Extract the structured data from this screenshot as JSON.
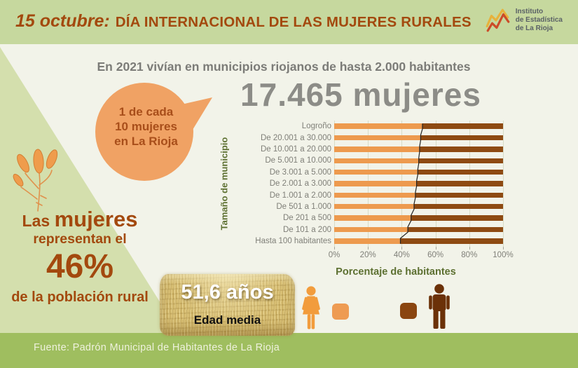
{
  "header": {
    "date_prefix": "15 octubre:",
    "title": "DÍA INTERNACIONAL DE LAS MUJERES RURALES",
    "logo": {
      "line1": "Instituto",
      "line2": "de Estadística",
      "line3": "de La Rioja"
    }
  },
  "subtitle": "En 2021 vivían en municipios riojanos de hasta 2.000 habitantes",
  "big_number": "17.465 mujeres",
  "bubble": {
    "line1": "1 de cada",
    "line2": "10 mujeres",
    "line3": "en La Rioja"
  },
  "left_panel": {
    "line1_small": "Las",
    "line1_big": "mujeres",
    "line2": "representan el",
    "percent": "46%",
    "line3": "de la población rural"
  },
  "hay": {
    "value": "51,6 años",
    "label": "Edad media"
  },
  "footer": {
    "source": "Fuente: Padrón Municipal de Habitantes de La Rioja"
  },
  "colors": {
    "header_bg": "#c6d89e",
    "content_bg": "#f2f3e9",
    "diagonal_green": "#d4dfad",
    "footer_bg": "#9fbe5f",
    "title_brown": "#a3490e",
    "bubble_orange": "#f0a264",
    "women_orange": "#ed9a4e",
    "men_brown": "#8e4a12",
    "axis_green": "#5d7031",
    "text_gray": "#8c8c87"
  },
  "chart_data": {
    "type": "bar",
    "orientation": "horizontal",
    "stacked": true,
    "ylabel_axis": "Tamaño de municipio",
    "xlabel": "Porcentaje de habitantes",
    "categories": [
      "Logroño",
      "De 20.001 a 30.000",
      "De 10.001 a 20.000",
      "De 5.001 a 10.000",
      "De 3.001 a 5.000",
      "De 2.001 a 3.000",
      "De 1.001 a 2.000",
      "De 501 a 1.000",
      "De 201 a 500",
      "De 101 a 200",
      "Hasta 100 habitantes"
    ],
    "series": [
      {
        "name": "Mujeres",
        "color": "#ed9a4e",
        "values": [
          52.3,
          51.2,
          50.6,
          50.1,
          49.5,
          48.8,
          48.1,
          47.3,
          45.5,
          43.6,
          39.2
        ]
      },
      {
        "name": "Hombres",
        "color": "#8e4a12",
        "values": [
          47.7,
          48.8,
          49.4,
          49.9,
          50.5,
          51.2,
          51.9,
          52.7,
          54.5,
          56.4,
          60.8
        ]
      }
    ],
    "xticks": [
      "0%",
      "20%",
      "40%",
      "60%",
      "80%",
      "100%"
    ],
    "xlim": [
      0,
      100
    ],
    "grid": true,
    "legend_position": "bottom (woman icon = orange, man icon = brown)"
  }
}
